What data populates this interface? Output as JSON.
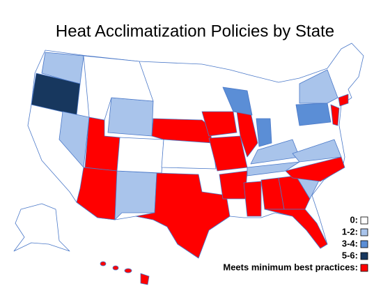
{
  "title": "Heat Acclimatization Policies by State",
  "legend": [
    {
      "label": "0:",
      "color": "#ffffff"
    },
    {
      "label": "1-2:",
      "color": "#a9c4eb"
    },
    {
      "label": "3-4:",
      "color": "#5b8ed6"
    },
    {
      "label": "5-6:",
      "color": "#17375e"
    },
    {
      "label": "Meets minimum best practices:",
      "color": "#ff0000"
    }
  ]
}
